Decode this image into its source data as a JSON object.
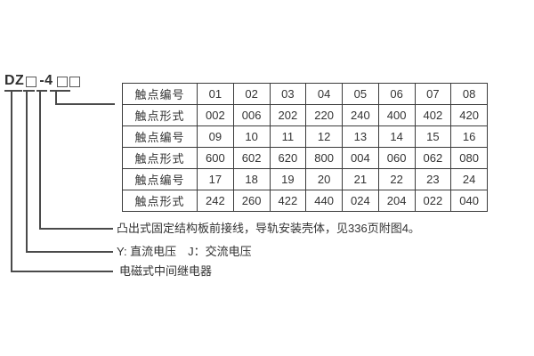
{
  "model": {
    "full_code": "DZ□-4□□",
    "prefix": "DZ",
    "infix": "-4",
    "placeholder_glyph": "□"
  },
  "table": {
    "rows": [
      {
        "label": "触点编号",
        "values": [
          "01",
          "02",
          "03",
          "04",
          "05",
          "06",
          "07",
          "08"
        ]
      },
      {
        "label": "触点形式",
        "values": [
          "002",
          "006",
          "202",
          "220",
          "240",
          "400",
          "402",
          "420"
        ]
      },
      {
        "label": "触点编号",
        "values": [
          "09",
          "10",
          "11",
          "12",
          "13",
          "14",
          "15",
          "16"
        ]
      },
      {
        "label": "触点形式",
        "values": [
          "600",
          "602",
          "620",
          "800",
          "004",
          "060",
          "062",
          "080"
        ]
      },
      {
        "label": "触点编号",
        "values": [
          "17",
          "18",
          "19",
          "20",
          "21",
          "22",
          "23",
          "24"
        ]
      },
      {
        "label": "触点形式",
        "values": [
          "242",
          "260",
          "422",
          "440",
          "024",
          "204",
          "022",
          "040"
        ]
      }
    ]
  },
  "annotations": {
    "housing": "凸出式固定结构板前接线，导轨安装壳体，见336页附图4。",
    "voltage": "Y: 直流电压　J：交流电压",
    "relay_type": "电磁式中间继电器"
  },
  "colors": {
    "background": "#ffffff",
    "line": "#4a4a4a",
    "table_border": "#3b3b3b",
    "text": "#333333"
  }
}
